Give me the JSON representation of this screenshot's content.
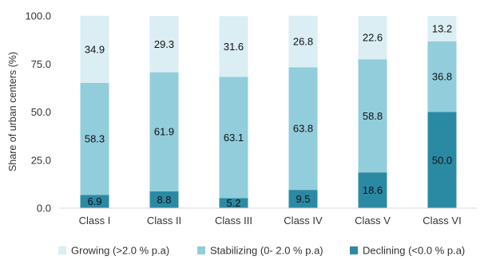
{
  "chart_data": {
    "type": "bar",
    "stacked": true,
    "title": "",
    "xlabel": "",
    "ylabel": "Share of urban centers (%)",
    "ylim": [
      0,
      100
    ],
    "yticks": [
      "0.0",
      "25.0",
      "50.0",
      "75.0",
      "100.0"
    ],
    "grid": false,
    "legend_position": "bottom",
    "categories": [
      "Class I",
      "Class II",
      "Class III",
      "Class IV",
      "Class V",
      "Class VI"
    ],
    "series": [
      {
        "name": "Declining (<0.0 % p.a)",
        "color": "#2b8aa3",
        "values": [
          6.9,
          8.8,
          5.2,
          9.5,
          18.6,
          50.0
        ],
        "labels": [
          "6.9",
          "8.8",
          "5.2",
          "9.5",
          "18.6",
          "50.0"
        ]
      },
      {
        "name": "Stabilizing (0- 2.0 % p.a)",
        "color": "#92cddc",
        "values": [
          58.3,
          61.9,
          63.1,
          63.8,
          58.8,
          36.8
        ],
        "labels": [
          "58.3",
          "61.9",
          "63.1",
          "63.8",
          "58.8",
          "36.8"
        ]
      },
      {
        "name": "Growing (>2.0 % p.a)",
        "color": "#daeef3",
        "values": [
          34.9,
          29.3,
          31.6,
          26.8,
          22.6,
          13.2
        ],
        "labels": [
          "34.9",
          "29.3",
          "31.6",
          "26.8",
          "22.6",
          "13.2"
        ]
      }
    ],
    "legend_order": [
      2,
      1,
      0
    ]
  }
}
